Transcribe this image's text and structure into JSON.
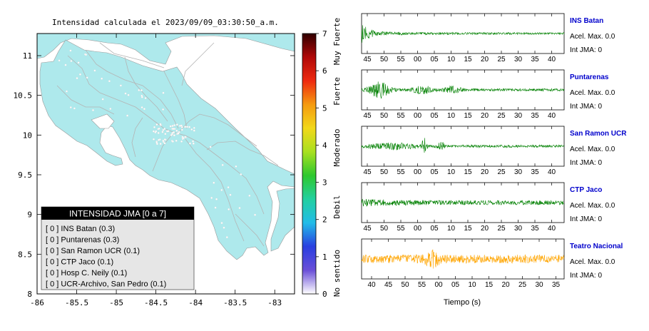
{
  "map": {
    "title": "Intensidad calculada el 2023/09/09_03:30:50_a.m.",
    "x_ticks": [
      "-86",
      "-85.5",
      "-85",
      "-84.5",
      "-84",
      "-83.5",
      "-83"
    ],
    "y_ticks": [
      "11",
      "10.5",
      "10",
      "9.5",
      "9",
      "8.5",
      "8"
    ],
    "land_color": "#aee9ec",
    "legend": {
      "title": "INTENSIDAD JMA [0 a 7]",
      "items": [
        "[ 0 ]  INS Batan (0.3)",
        "[ 0 ]  Puntarenas (0.3)",
        "[ 0 ]  San Ramon UCR (0.1)",
        "[ 0 ]  CTP Jaco (0.1)",
        "[ 0 ]  Hosp C. Neily (0.1)",
        "[ 0 ]  UCR-Archivo, San Pedro (0.1)"
      ]
    }
  },
  "colorbar": {
    "ticks": [
      "0",
      "1",
      "2",
      "3",
      "4",
      "5",
      "6",
      "7"
    ],
    "labels": [
      "No sentido",
      "Debil",
      "Moderado",
      "Fuerte",
      "Muy Fuerte"
    ],
    "stops": [
      "#ffffff",
      "#6a4fd8",
      "#2a3fe0",
      "#22bce8",
      "#22d0a0",
      "#2ec82e",
      "#a8e020",
      "#f2d81a",
      "#f59a10",
      "#ee2a10",
      "#b00808",
      "#300000"
    ]
  },
  "chart_data": [
    {
      "type": "line",
      "name": "INS Batan",
      "acel_label": "Acel. Max. 0.0",
      "int_label": "Int JMA: 0",
      "x_tick_labels": [
        "45",
        "50",
        "55",
        "00",
        "05",
        "10",
        "15",
        "20",
        "25",
        "30",
        "35",
        "40"
      ],
      "color": "#008000",
      "pattern": "decay"
    },
    {
      "type": "line",
      "name": "Puntarenas",
      "acel_label": "Acel. Max. 0.0",
      "int_label": "Int JMA: 0",
      "x_tick_labels": [
        "45",
        "50",
        "55",
        "00",
        "05",
        "10",
        "15",
        "20",
        "25",
        "30",
        "35",
        "40"
      ],
      "color": "#008000",
      "pattern": "bursts"
    },
    {
      "type": "line",
      "name": "San Ramon UCR",
      "acel_label": "Acel. Max. 0.0",
      "int_label": "Int JMA: 0",
      "x_tick_labels": [
        "45",
        "50",
        "55",
        "00",
        "05",
        "10",
        "15",
        "20",
        "25",
        "30",
        "35",
        "40"
      ],
      "color": "#008000",
      "pattern": "spike"
    },
    {
      "type": "line",
      "name": "CTP Jaco",
      "acel_label": "Acel. Max. 0.0",
      "int_label": "Int JMA: 0",
      "x_tick_labels": [
        "45",
        "50",
        "55",
        "00",
        "05",
        "10",
        "15",
        "20",
        "25",
        "30",
        "35",
        "40"
      ],
      "color": "#008000",
      "pattern": "steady"
    },
    {
      "type": "line",
      "name": "Teatro Nacional",
      "acel_label": "Acel. Max. 0.0",
      "int_label": "Int JMA: 0",
      "x_tick_labels": [
        "40",
        "45",
        "50",
        "55",
        "00",
        "05",
        "10",
        "15",
        "20",
        "25",
        "30",
        "35"
      ],
      "color": "#ffa500",
      "pattern": "noisy",
      "xlabel": "Tiempo (s)"
    }
  ]
}
